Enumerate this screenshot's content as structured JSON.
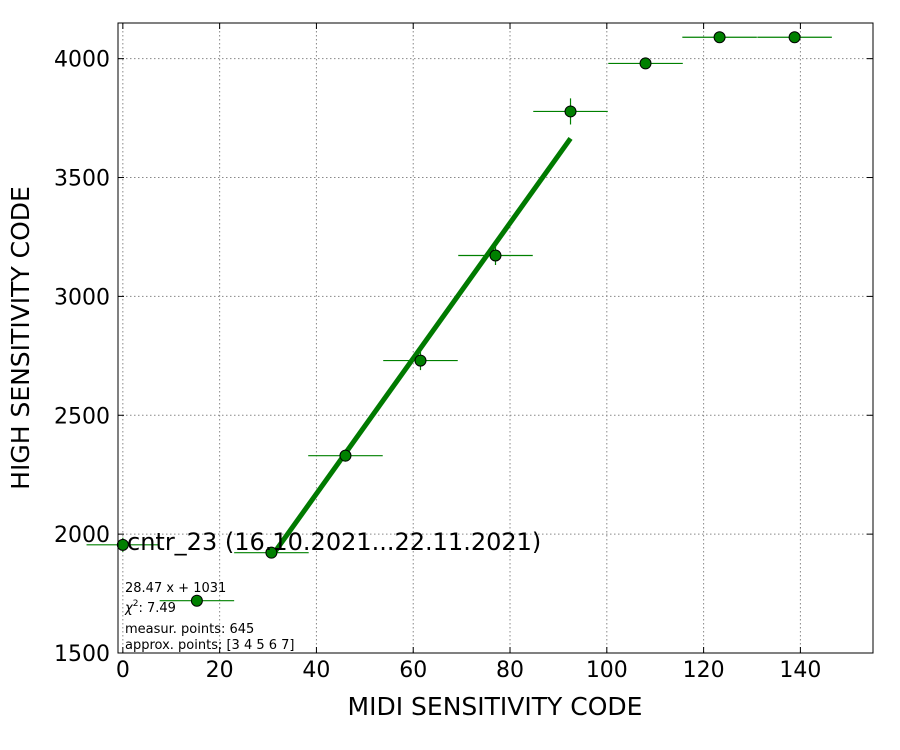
{
  "chart_data": {
    "type": "scatter",
    "title": "",
    "xlabel": "MIDI SENSITIVITY CODE",
    "ylabel": "HIGH SENSITIVITY CODE",
    "xlim": [
      -1,
      155
    ],
    "ylim": [
      1500,
      4150
    ],
    "xticks": [
      0,
      20,
      40,
      60,
      80,
      100,
      120,
      140
    ],
    "yticks": [
      1500,
      2000,
      2500,
      3000,
      3500,
      4000
    ],
    "grid": true,
    "series_label": "cntr_23 (16.10.2021...22.11.2021)",
    "series": [
      {
        "color": "#008000",
        "points": [
          {
            "x": 0,
            "y": 1955,
            "xerr": 7.5,
            "yerr": 30
          },
          {
            "x": 15.3,
            "y": 1720,
            "xerr": 7.7,
            "yerr": 15
          },
          {
            "x": 30.7,
            "y": 1922,
            "xerr": 7.7,
            "yerr": 20
          },
          {
            "x": 46.0,
            "y": 2330,
            "xerr": 7.7,
            "yerr": 25
          },
          {
            "x": 61.5,
            "y": 2730,
            "xerr": 7.7,
            "yerr": 40
          },
          {
            "x": 77.0,
            "y": 3172,
            "xerr": 7.7,
            "yerr": 40
          },
          {
            "x": 92.5,
            "y": 3778,
            "xerr": 7.7,
            "yerr": 55
          },
          {
            "x": 108.0,
            "y": 3980,
            "xerr": 7.7,
            "yerr": 20
          },
          {
            "x": 123.3,
            "y": 4090,
            "xerr": 7.7,
            "yerr": 15
          },
          {
            "x": 138.8,
            "y": 4090,
            "xerr": 7.7,
            "yerr": 15
          }
        ]
      }
    ],
    "fit": {
      "slope": 28.47,
      "intercept": 1031,
      "x_range": [
        30.7,
        92.5
      ],
      "color": "#007a00"
    },
    "annotations": {
      "equation": "28.47 x + 1031",
      "chi2": ": 7.49",
      "measur": "measur. points: 645",
      "approx": "approx. points: [3 4 5 6 7]"
    }
  }
}
